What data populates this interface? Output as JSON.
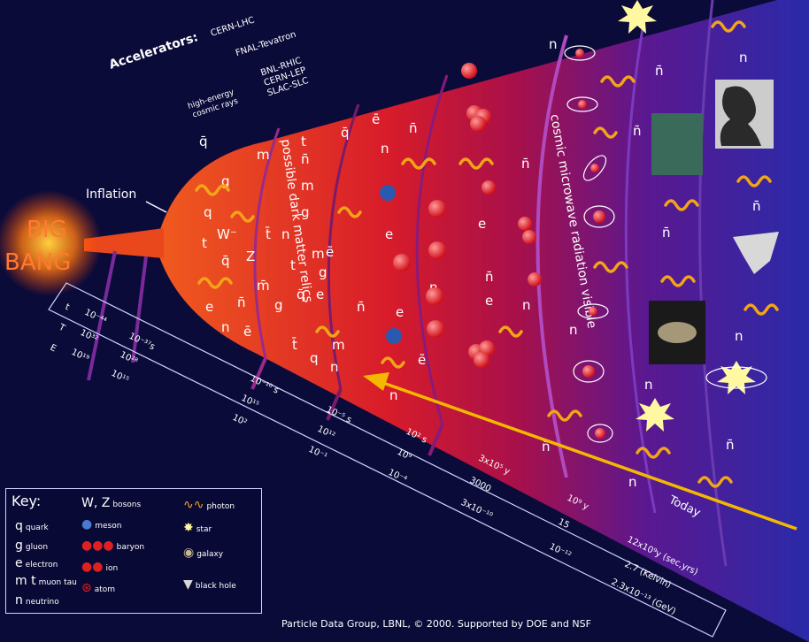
{
  "colors": {
    "background": "#0b0b3a",
    "fire": "#e0401a",
    "photon": "#f2a516",
    "arrow": "#f4b800",
    "band": "#7a2a9a"
  },
  "big_bang": {
    "line1": "BIG",
    "line2": "BANG"
  },
  "inflation_label": "Inflation",
  "accelerators": {
    "label": "Accelerators:",
    "items": [
      "CERN-LHC",
      "FNAL-Tevatron",
      "BNL-RHIC",
      "CERN-LEP",
      "SLAC-SLC"
    ],
    "cosmic": [
      "high-energy",
      "cosmic rays"
    ]
  },
  "band_labels": {
    "dark_matter": "possible dark matter relics",
    "cmb": "cosmic microwave radiation visible"
  },
  "particles": {
    "quark": "q",
    "antiquark": "q̄",
    "gluon": "g",
    "electron": "e",
    "antielectron": "ē",
    "neutrino": "n",
    "antineutrino": "n̄",
    "muon": "m",
    "antimuon": "m̄",
    "tau": "t",
    "antitau": "t̄",
    "w": "W",
    "wminus": "W⁻",
    "z": "Z"
  },
  "scale_rows": {
    "t": "t",
    "T": "T",
    "E": "E"
  },
  "scale_values": {
    "t": [
      "10⁻⁴⁴",
      "10⁻³⁷s",
      "10⁻¹⁰ s",
      "10⁻⁵ s",
      "10² s",
      "3x10⁵ y",
      "10⁹ y",
      "12x10⁹y (sec,yrs)"
    ],
    "T": [
      "10³²",
      "10²⁸",
      "10¹⁵",
      "10¹²",
      "10⁹",
      "3000",
      "15",
      "2.7 (Kelvin)"
    ],
    "E": [
      "10¹⁹",
      "10¹⁵",
      "10²",
      "10⁻¹",
      "10⁻⁴",
      "3x10⁻¹⁰",
      "10⁻¹²",
      "2.3x10⁻¹³ (GeV)"
    ]
  },
  "today_label": "Today",
  "key": {
    "title": "Key:",
    "items": [
      {
        "sym": "q",
        "label": "quark"
      },
      {
        "sym": "g",
        "label": "gluon"
      },
      {
        "sym": "e",
        "label": "electron"
      },
      {
        "sym": "m t",
        "label": "muon  tau"
      },
      {
        "sym": "n",
        "label": "neutrino"
      },
      {
        "sym": "W, Z",
        "label": "bosons"
      },
      {
        "sym": "",
        "label": "meson"
      },
      {
        "sym": "",
        "label": "baryon"
      },
      {
        "sym": "",
        "label": "ion"
      },
      {
        "sym": "",
        "label": "atom"
      },
      {
        "sym": "",
        "label": "photon"
      },
      {
        "sym": "",
        "label": "star"
      },
      {
        "sym": "",
        "label": "galaxy"
      },
      {
        "sym": "",
        "label": "black hole"
      }
    ]
  },
  "credit": "Particle Data Group, LBNL, © 2000.    Supported by DOE and NSF"
}
